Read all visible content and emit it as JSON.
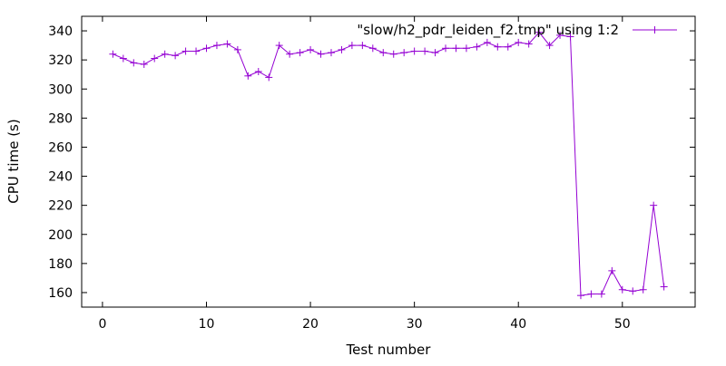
{
  "chart_data": {
    "type": "line",
    "title": "",
    "xlabel": "Test number",
    "ylabel": "CPU time (s)",
    "xlim": [
      -2,
      57
    ],
    "ylim": [
      150,
      350
    ],
    "xticks": [
      0,
      10,
      20,
      30,
      40,
      50
    ],
    "yticks": [
      160,
      180,
      200,
      220,
      240,
      260,
      280,
      300,
      320,
      340
    ],
    "legend_position": "top-right",
    "grid": false,
    "marker": "plus",
    "series": [
      {
        "name": "\"slow/h2_pdr_leiden_f2.tmp\" using 1:2",
        "color": "#9400d3",
        "x": [
          1,
          2,
          3,
          4,
          5,
          6,
          7,
          8,
          9,
          10,
          11,
          12,
          13,
          14,
          15,
          16,
          17,
          18,
          19,
          20,
          21,
          22,
          23,
          24,
          25,
          26,
          27,
          28,
          29,
          30,
          31,
          32,
          33,
          34,
          35,
          36,
          37,
          38,
          39,
          40,
          41,
          42,
          43,
          44,
          45,
          46,
          47,
          48,
          49,
          50,
          51,
          52,
          53,
          54
        ],
        "y": [
          324,
          321,
          318,
          317,
          321,
          324,
          323,
          326,
          326,
          328,
          330,
          331,
          327,
          309,
          312,
          308,
          330,
          324,
          325,
          327,
          324,
          325,
          327,
          330,
          330,
          328,
          325,
          324,
          325,
          326,
          326,
          325,
          328,
          328,
          328,
          329,
          332,
          329,
          329,
          332,
          331,
          339,
          330,
          337,
          336,
          158,
          159,
          159,
          175,
          162,
          161,
          162,
          220,
          164
        ]
      }
    ]
  }
}
